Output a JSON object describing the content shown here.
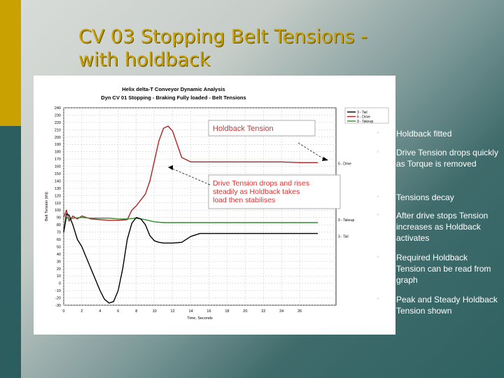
{
  "slide": {
    "title_line1": "CV 03 Stopping Belt Tensions -",
    "title_line2": "with holdback"
  },
  "bullets": [
    "Holdback fitted",
    "Drive Tension drops quickly as Torque is removed",
    "Tensions decay",
    "After drive stops Tension increases as Holdback activates",
    "Required Holdback Tension can be read from graph",
    "Peak and Steady Holdback Tension shown"
  ],
  "chart_data": {
    "type": "line",
    "title": "Helix delta-T Conveyor Dynamic Analysis",
    "subtitle": "Dyn CV 01 Stopping - Braking Fully loaded - Belt Tensions",
    "xlabel": "Time, Seconds",
    "ylabel": "Belt Tension (kN)",
    "xlim": [
      0,
      30
    ],
    "ylim": [
      -30,
      240
    ],
    "x_ticks": [
      0,
      2,
      4,
      6,
      8,
      10,
      12,
      14,
      16,
      18,
      20,
      22,
      24,
      26
    ],
    "y_ticks": [
      -30,
      -20,
      -10,
      0,
      10,
      20,
      30,
      40,
      50,
      60,
      70,
      80,
      90,
      100,
      110,
      120,
      130,
      140,
      150,
      160,
      170,
      180,
      190,
      200,
      210,
      220,
      230,
      240
    ],
    "grid": true,
    "legend": [
      "3 - Tail",
      "6 - Drive",
      "9 - Takeup"
    ],
    "legend_position": "top-right",
    "series": [
      {
        "name": "6 - Drive",
        "color": "#b22222",
        "x": [
          0,
          0.3,
          0.6,
          1,
          1.5,
          2,
          3,
          4,
          5,
          6,
          7,
          7.5,
          8,
          9,
          9.5,
          10,
          10.5,
          11,
          11.5,
          12,
          12.5,
          13,
          14,
          15,
          16,
          18,
          20,
          22,
          24,
          26,
          28
        ],
        "y": [
          90,
          100,
          85,
          92,
          88,
          92,
          88,
          87,
          86,
          86,
          87,
          100,
          106,
          122,
          140,
          168,
          195,
          212,
          215,
          208,
          190,
          172,
          166,
          166,
          166,
          166,
          166,
          166,
          166,
          165,
          165
        ]
      },
      {
        "name": "9 - Takeup",
        "color": "#2e8b2e",
        "x": [
          0,
          0.3,
          0.6,
          1,
          2,
          3,
          4,
          5,
          6,
          7,
          8,
          9,
          10,
          11,
          12,
          14,
          16,
          18,
          20,
          22,
          24,
          26,
          28
        ],
        "y": [
          70,
          90,
          88,
          89,
          90,
          89,
          89,
          89,
          88,
          88,
          89,
          87,
          84,
          83,
          83,
          83,
          83,
          83,
          83,
          83,
          83,
          83,
          83
        ]
      },
      {
        "name": "3 - Tail",
        "color": "#000000",
        "x": [
          0,
          0.3,
          0.6,
          1,
          1.5,
          2,
          2.5,
          3,
          3.5,
          4,
          4.5,
          5,
          5.5,
          6,
          6.5,
          7,
          7.5,
          8,
          8.5,
          9,
          9.5,
          10,
          10.5,
          11,
          12,
          13,
          14,
          15,
          16,
          18,
          20,
          22,
          24,
          26,
          28
        ],
        "y": [
          70,
          95,
          93,
          80,
          60,
          50,
          35,
          20,
          5,
          -10,
          -22,
          -27,
          -25,
          -10,
          20,
          60,
          82,
          90,
          88,
          80,
          65,
          58,
          56,
          55,
          55,
          56,
          64,
          68,
          68,
          68,
          68,
          68,
          68,
          68,
          68
        ]
      }
    ],
    "end_labels": [
      "6 - Drive",
      "9 - Takeup",
      "3 - Tail"
    ],
    "annotations": [
      {
        "text": "Holdback Tension"
      },
      {
        "text": "Drive Tension drops and rises steadily as Holdback takes load then stabilises"
      }
    ],
    "annotation_lines": [
      [
        "Drive Tension drops and rises",
        "steadily as Holdback takes",
        "load then stabilises"
      ]
    ]
  }
}
